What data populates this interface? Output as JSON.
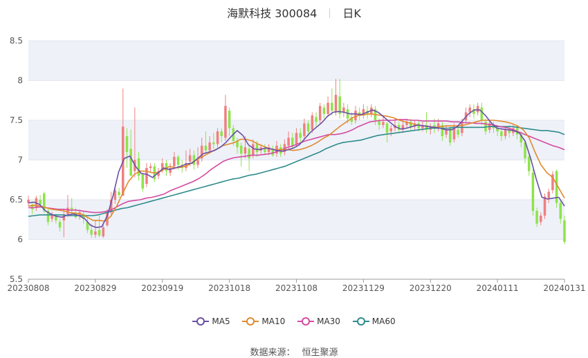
{
  "header": {
    "stock": "海默科技 300084",
    "period": "日K"
  },
  "source": {
    "label": "数据来源：",
    "name": "恒生聚源"
  },
  "colors": {
    "up": "#f08080",
    "down": "#8ee34b",
    "MA5": "#6a4fa8",
    "MA10": "#e08a2e",
    "MA30": "#d44aa0",
    "MA60": "#2e8b8b",
    "band": "#eef1f8"
  },
  "chart_data": {
    "type": "candlestick",
    "ylim": [
      5.5,
      8.5
    ],
    "yticks": [
      "5.5",
      "6",
      "6.5",
      "7",
      "7.5",
      "8",
      "8.5"
    ],
    "xticks": [
      "20230808",
      "20230829",
      "20230919",
      "20231018",
      "20231108",
      "20231129",
      "20231220",
      "20240111",
      "20240131"
    ],
    "legend": [
      "MA5",
      "MA10",
      "MA30",
      "MA60"
    ],
    "legend_position": "bottom",
    "candles": [
      [
        6.46,
        6.5,
        6.42,
        6.55
      ],
      [
        6.44,
        6.38,
        6.32,
        6.48
      ],
      [
        6.4,
        6.52,
        6.36,
        6.55
      ],
      [
        6.5,
        6.44,
        6.4,
        6.56
      ],
      [
        6.58,
        6.36,
        6.33,
        6.6
      ],
      [
        6.36,
        6.22,
        6.18,
        6.4
      ],
      [
        6.26,
        6.32,
        6.22,
        6.35
      ],
      [
        6.3,
        6.24,
        6.2,
        6.32
      ],
      [
        6.22,
        6.15,
        6.1,
        6.26
      ],
      [
        6.24,
        6.3,
        6.03,
        6.38
      ],
      [
        6.32,
        6.4,
        6.28,
        6.56
      ],
      [
        6.4,
        6.38,
        6.3,
        6.52
      ],
      [
        6.34,
        6.28,
        6.26,
        6.4
      ],
      [
        6.3,
        6.34,
        6.25,
        6.38
      ],
      [
        6.32,
        6.26,
        6.2,
        6.36
      ],
      [
        6.22,
        6.12,
        6.08,
        6.28
      ],
      [
        6.12,
        6.06,
        6.02,
        6.2
      ],
      [
        6.06,
        6.1,
        6.02,
        6.24
      ],
      [
        6.12,
        6.05,
        6.03,
        6.3
      ],
      [
        6.04,
        6.15,
        6.02,
        6.2
      ],
      [
        6.18,
        6.34,
        6.16,
        6.38
      ],
      [
        6.34,
        6.5,
        6.3,
        6.6
      ],
      [
        6.5,
        6.62,
        6.45,
        6.66
      ],
      [
        6.6,
        6.56,
        6.52,
        6.65
      ],
      [
        6.55,
        7.42,
        6.55,
        7.9
      ],
      [
        7.3,
        7.1,
        6.9,
        7.4
      ],
      [
        7.14,
        6.8,
        6.8,
        7.38
      ],
      [
        6.86,
        7.0,
        6.78,
        7.66
      ],
      [
        7.02,
        6.8,
        6.74,
        7.1
      ],
      [
        6.82,
        6.64,
        6.6,
        6.84
      ],
      [
        6.7,
        6.9,
        6.66,
        6.96
      ],
      [
        6.9,
        6.92,
        6.84,
        6.96
      ],
      [
        6.92,
        6.76,
        6.72,
        6.96
      ],
      [
        6.8,
        6.86,
        6.76,
        6.9
      ],
      [
        6.88,
        6.96,
        6.84,
        7.02
      ],
      [
        6.96,
        6.86,
        6.8,
        7.0
      ],
      [
        6.84,
        6.9,
        6.8,
        6.96
      ],
      [
        6.92,
        7.04,
        6.88,
        7.1
      ],
      [
        7.04,
        6.94,
        6.88,
        7.06
      ],
      [
        6.94,
        6.9,
        6.84,
        7.0
      ],
      [
        6.9,
        6.96,
        6.86,
        7.12
      ],
      [
        6.98,
        7.06,
        6.92,
        7.14
      ],
      [
        7.06,
        6.94,
        6.88,
        7.12
      ],
      [
        6.94,
        7.0,
        6.9,
        7.16
      ],
      [
        7.02,
        7.18,
        6.98,
        7.28
      ],
      [
        7.18,
        7.12,
        7.06,
        7.36
      ],
      [
        7.12,
        7.22,
        7.08,
        7.3
      ],
      [
        7.22,
        7.2,
        7.14,
        7.34
      ],
      [
        7.2,
        7.36,
        7.16,
        7.4
      ],
      [
        7.36,
        7.3,
        7.22,
        7.4
      ],
      [
        7.28,
        7.68,
        7.24,
        7.82
      ],
      [
        7.62,
        7.4,
        7.3,
        7.66
      ],
      [
        7.4,
        7.24,
        7.18,
        7.44
      ],
      [
        7.24,
        7.16,
        7.08,
        7.28
      ],
      [
        7.18,
        7.08,
        6.92,
        7.22
      ],
      [
        7.08,
        7.16,
        7.02,
        7.3
      ],
      [
        7.14,
        7.02,
        6.86,
        7.18
      ],
      [
        7.06,
        7.2,
        7.02,
        7.26
      ],
      [
        7.2,
        7.1,
        7.04,
        7.24
      ],
      [
        7.12,
        7.16,
        7.08,
        7.2
      ],
      [
        7.14,
        7.1,
        7.06,
        7.2
      ],
      [
        7.1,
        7.16,
        7.06,
        7.2
      ],
      [
        7.14,
        7.06,
        7.04,
        7.18
      ],
      [
        7.08,
        7.18,
        7.04,
        7.24
      ],
      [
        7.16,
        7.08,
        7.04,
        7.2
      ],
      [
        7.1,
        7.2,
        7.06,
        7.26
      ],
      [
        7.18,
        7.28,
        7.14,
        7.36
      ],
      [
        7.28,
        7.18,
        7.14,
        7.34
      ],
      [
        7.2,
        7.34,
        7.16,
        7.4
      ],
      [
        7.34,
        7.28,
        7.22,
        7.4
      ],
      [
        7.3,
        7.46,
        7.26,
        7.52
      ],
      [
        7.46,
        7.36,
        7.3,
        7.5
      ],
      [
        7.38,
        7.56,
        7.34,
        7.6
      ],
      [
        7.54,
        7.48,
        7.42,
        7.6
      ],
      [
        7.5,
        7.68,
        7.46,
        7.72
      ],
      [
        7.66,
        7.58,
        7.52,
        7.7
      ],
      [
        7.58,
        7.72,
        7.54,
        7.8
      ],
      [
        7.72,
        7.62,
        7.56,
        7.9
      ],
      [
        7.6,
        7.82,
        7.56,
        8.02
      ],
      [
        7.8,
        7.58,
        7.52,
        8.02
      ],
      [
        7.6,
        7.66,
        7.54,
        7.72
      ],
      [
        7.64,
        7.52,
        7.46,
        7.7
      ],
      [
        7.54,
        7.48,
        7.44,
        7.6
      ],
      [
        7.5,
        7.62,
        7.46,
        7.68
      ],
      [
        7.6,
        7.56,
        7.5,
        7.66
      ],
      [
        7.56,
        7.64,
        7.52,
        7.7
      ],
      [
        7.62,
        7.58,
        7.52,
        7.68
      ],
      [
        7.58,
        7.66,
        7.54,
        7.7
      ],
      [
        7.64,
        7.5,
        7.44,
        7.68
      ],
      [
        7.5,
        7.44,
        7.38,
        7.52
      ],
      [
        7.44,
        7.48,
        7.4,
        7.56
      ],
      [
        7.46,
        7.34,
        7.22,
        7.48
      ],
      [
        7.36,
        7.4,
        7.3,
        7.44
      ],
      [
        7.4,
        7.44,
        7.36,
        7.52
      ],
      [
        7.44,
        7.38,
        7.34,
        7.48
      ],
      [
        7.38,
        7.44,
        7.34,
        7.5
      ],
      [
        7.44,
        7.48,
        7.4,
        7.52
      ],
      [
        7.48,
        7.42,
        7.38,
        7.52
      ],
      [
        7.42,
        7.46,
        7.38,
        7.5
      ],
      [
        7.46,
        7.4,
        7.36,
        7.5
      ],
      [
        7.4,
        7.44,
        7.36,
        7.48
      ],
      [
        7.44,
        7.38,
        7.34,
        7.6
      ],
      [
        7.38,
        7.42,
        7.32,
        7.46
      ],
      [
        7.44,
        7.4,
        7.34,
        7.52
      ],
      [
        7.4,
        7.46,
        7.36,
        7.52
      ],
      [
        7.44,
        7.3,
        7.24,
        7.48
      ],
      [
        7.32,
        7.38,
        7.28,
        7.44
      ],
      [
        7.4,
        7.22,
        7.18,
        7.42
      ],
      [
        7.26,
        7.4,
        7.22,
        7.46
      ],
      [
        7.38,
        7.32,
        7.28,
        7.44
      ],
      [
        7.34,
        7.48,
        7.3,
        7.52
      ],
      [
        7.5,
        7.6,
        7.46,
        7.66
      ],
      [
        7.6,
        7.66,
        7.54,
        7.7
      ],
      [
        7.64,
        7.58,
        7.52,
        7.7
      ],
      [
        7.6,
        7.68,
        7.56,
        7.72
      ],
      [
        7.66,
        7.5,
        7.44,
        7.72
      ],
      [
        7.48,
        7.36,
        7.32,
        7.52
      ],
      [
        7.38,
        7.46,
        7.34,
        7.5
      ],
      [
        7.44,
        7.4,
        7.34,
        7.48
      ],
      [
        7.4,
        7.36,
        7.3,
        7.44
      ],
      [
        7.36,
        7.3,
        7.24,
        7.4
      ],
      [
        7.3,
        7.38,
        7.26,
        7.42
      ],
      [
        7.38,
        7.34,
        7.28,
        7.44
      ],
      [
        7.34,
        7.4,
        7.3,
        7.44
      ],
      [
        7.4,
        7.32,
        7.26,
        7.44
      ],
      [
        7.32,
        7.22,
        7.16,
        7.36
      ],
      [
        7.22,
        7.02,
        6.96,
        7.24
      ],
      [
        7.04,
        6.86,
        6.8,
        7.06
      ],
      [
        6.84,
        6.36,
        6.3,
        6.88
      ],
      [
        6.36,
        6.2,
        6.16,
        6.4
      ],
      [
        6.22,
        6.3,
        6.18,
        6.34
      ],
      [
        6.3,
        6.54,
        6.26,
        6.58
      ],
      [
        6.52,
        6.6,
        6.46,
        6.64
      ],
      [
        6.62,
        6.82,
        6.58,
        6.86
      ],
      [
        6.86,
        6.46,
        6.4,
        6.88
      ],
      [
        6.46,
        6.26,
        6.2,
        6.5
      ],
      [
        6.24,
        5.97,
        5.94,
        6.3
      ]
    ],
    "ma": {
      "MA5": [
        6.46,
        6.47,
        6.44,
        6.36,
        6.32,
        6.29,
        6.28,
        6.31,
        6.32,
        6.3,
        6.26,
        6.18,
        6.15,
        6.16,
        6.3,
        6.55,
        6.85,
        7.02,
        7.05,
        6.92,
        6.83,
        6.82,
        6.78,
        6.84,
        6.9,
        6.88,
        6.9,
        6.92,
        6.95,
        6.96,
        7.02,
        7.08,
        7.1,
        7.12,
        7.16,
        7.22,
        7.3,
        7.37,
        7.31,
        7.19,
        7.14,
        7.13,
        7.15,
        7.14,
        7.12,
        7.11,
        7.13,
        7.15,
        7.19,
        7.27,
        7.35,
        7.41,
        7.47,
        7.55,
        7.6,
        7.61,
        7.6,
        7.58,
        7.58,
        7.57,
        7.6,
        7.63,
        7.6,
        7.54,
        7.48,
        7.42,
        7.39,
        7.4,
        7.42,
        7.44,
        7.43,
        7.42,
        7.41,
        7.4,
        7.38,
        7.38,
        7.42,
        7.5,
        7.58,
        7.63,
        7.63,
        7.56,
        7.47,
        7.4,
        7.39,
        7.38,
        7.37,
        7.34,
        7.24,
        7.02,
        6.76,
        6.53,
        6.51,
        6.52,
        6.53,
        6.42
      ],
      "MA10": [
        6.42,
        6.43,
        6.42,
        6.4,
        6.38,
        6.37,
        6.36,
        6.34,
        6.33,
        6.32,
        6.28,
        6.24,
        6.24,
        6.23,
        6.29,
        6.42,
        6.58,
        6.73,
        6.82,
        6.86,
        6.86,
        6.84,
        6.84,
        6.88,
        6.92,
        6.9,
        6.91,
        6.93,
        6.98,
        7.02,
        7.06,
        7.1,
        7.14,
        7.18,
        7.2,
        7.22,
        7.26,
        7.26,
        7.24,
        7.2,
        7.17,
        7.14,
        7.13,
        7.13,
        7.13,
        7.12,
        7.13,
        7.15,
        7.18,
        7.22,
        7.27,
        7.31,
        7.37,
        7.43,
        7.48,
        7.53,
        7.56,
        7.57,
        7.58,
        7.57,
        7.56,
        7.55,
        7.53,
        7.5,
        7.48,
        7.46,
        7.44,
        7.43,
        7.42,
        7.41,
        7.42,
        7.43,
        7.43,
        7.43,
        7.44,
        7.46,
        7.48,
        7.5,
        7.5,
        7.5,
        7.49,
        7.48,
        7.46,
        7.43,
        7.38,
        7.28,
        7.1,
        6.94,
        6.84,
        6.78,
        6.65,
        6.52
      ],
      "MA30": [
        6.4,
        6.4,
        6.41,
        6.4,
        6.39,
        6.38,
        6.38,
        6.37,
        6.37,
        6.36,
        6.35,
        6.34,
        6.34,
        6.35,
        6.37,
        6.41,
        6.45,
        6.48,
        6.49,
        6.5,
        6.52,
        6.53,
        6.55,
        6.57,
        6.61,
        6.64,
        6.67,
        6.7,
        6.73,
        6.77,
        6.82,
        6.88,
        6.93,
        6.98,
        7.01,
        7.03,
        7.04,
        7.05,
        7.06,
        7.06,
        7.07,
        7.08,
        7.1,
        7.13,
        7.16,
        7.18,
        7.21,
        7.24,
        7.26,
        7.28,
        7.3,
        7.32,
        7.32,
        7.33,
        7.35,
        7.38,
        7.42,
        7.45,
        7.48,
        7.49,
        7.5,
        7.5,
        7.5,
        7.51,
        7.51,
        7.5,
        7.5,
        7.49,
        7.49,
        7.49,
        7.49,
        7.49,
        7.48,
        7.48,
        7.47,
        7.47,
        7.46,
        7.46,
        7.45,
        7.44,
        7.42,
        7.41,
        7.39,
        7.36,
        7.33,
        7.3,
        7.27,
        7.24,
        7.21,
        7.18,
        7.16,
        7.13
      ],
      "MA60": [
        6.29,
        6.3,
        6.31,
        6.31,
        6.31,
        6.31,
        6.31,
        6.3,
        6.3,
        6.3,
        6.3,
        6.3,
        6.31,
        6.33,
        6.35,
        6.37,
        6.39,
        6.4,
        6.42,
        6.44,
        6.46,
        6.48,
        6.5,
        6.52,
        6.54,
        6.56,
        6.58,
        6.6,
        6.62,
        6.64,
        6.66,
        6.68,
        6.7,
        6.72,
        6.74,
        6.76,
        6.77,
        6.79,
        6.81,
        6.82,
        6.84,
        6.86,
        6.88,
        6.9,
        6.92,
        6.95,
        6.98,
        7.01,
        7.04,
        7.07,
        7.1,
        7.14,
        7.17,
        7.2,
        7.22,
        7.23,
        7.24,
        7.25,
        7.27,
        7.29,
        7.31,
        7.32,
        7.33,
        7.34,
        7.35,
        7.36,
        7.37,
        7.38,
        7.39,
        7.4,
        7.4,
        7.4,
        7.4,
        7.41,
        7.41,
        7.41,
        7.41,
        7.41,
        7.41,
        7.42,
        7.42,
        7.42,
        7.42,
        7.42,
        7.41,
        7.4,
        7.39,
        7.38,
        7.37,
        7.37,
        7.36,
        7.35,
        7.32
      ]
    }
  }
}
